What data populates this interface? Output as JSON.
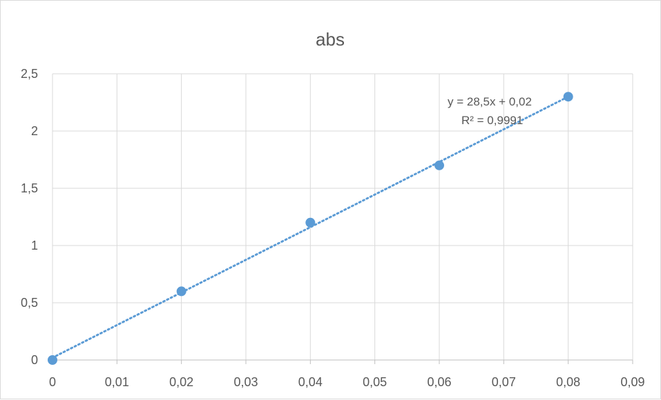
{
  "chart_data": {
    "type": "scatter",
    "title": "abs",
    "xlabel": "",
    "ylabel": "",
    "xlim": [
      0,
      0.09
    ],
    "ylim": [
      0,
      2.5
    ],
    "x_ticks": [
      "0",
      "0,01",
      "0,02",
      "0,03",
      "0,04",
      "0,05",
      "0,06",
      "0,07",
      "0,08",
      "0,09"
    ],
    "y_ticks": [
      "0",
      "0,5",
      "1",
      "1,5",
      "2",
      "2,5"
    ],
    "grid": true,
    "legend": "none",
    "series": [
      {
        "x": [
          0,
          0.02,
          0.04,
          0.06,
          0.08
        ],
        "y": [
          0,
          0.6,
          1.2,
          1.7,
          2.3
        ],
        "color": "#5b9bd5"
      }
    ],
    "trendline": {
      "type": "linear",
      "style": "dotted",
      "color": "#5b9bd5",
      "slope": 28.5,
      "intercept": 0.02,
      "equation": "y = 28,5x + 0,02",
      "r_squared": "R² = 0,9991"
    }
  }
}
